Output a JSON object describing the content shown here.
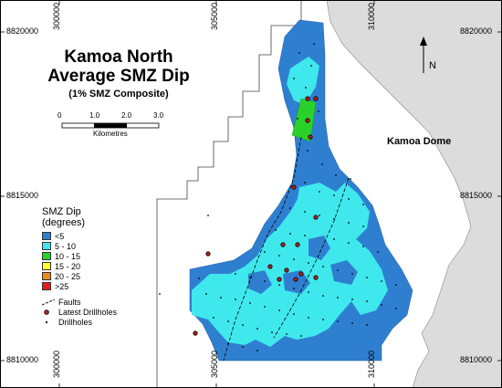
{
  "title": {
    "line1": "Kamoa North",
    "line2": "Average SMZ Dip",
    "subtitle": "(1% SMZ Composite)"
  },
  "region_label": "Kamoa Dome",
  "north_arrow": {
    "label": "N",
    "icon": "north-arrow-icon"
  },
  "scale_bar": {
    "ticks": [
      "0",
      "1.0",
      "2.0",
      "3.0"
    ],
    "unit": "Kilometres"
  },
  "coordinates": {
    "top": [
      "300000",
      "305000",
      "310000"
    ],
    "bottom": [
      "300000",
      "305000",
      "310000"
    ],
    "left": [
      "8820000",
      "8815000",
      "8810000"
    ],
    "right": [
      "8820000",
      "8815000",
      "8810000"
    ]
  },
  "legend": {
    "title_line1": "SMZ Dip",
    "title_line2": "(degrees)",
    "classes": [
      {
        "label": "<5",
        "color": "#2f7fd1"
      },
      {
        "label": "5 - 10",
        "color": "#3fe8ec"
      },
      {
        "label": "10 - 15",
        "color": "#2bd12b"
      },
      {
        "label": "15 - 20",
        "color": "#ffff3a"
      },
      {
        "label": "20 - 25",
        "color": "#ee8a1c"
      },
      {
        "label": ">25",
        "color": "#e81c1c"
      }
    ],
    "faults_label": "Faults",
    "latest_drillholes_label": "Latest Drillholes",
    "drillholes_label": "Drillholes"
  },
  "colors": {
    "dome_fill": "#dcdcdc",
    "dip_lt5": "#2f7fd1",
    "dip_5_10": "#3fe8ec",
    "dip_10_15": "#2bd12b",
    "latest_drillhole": "#b22222",
    "drillhole": "#000000"
  }
}
